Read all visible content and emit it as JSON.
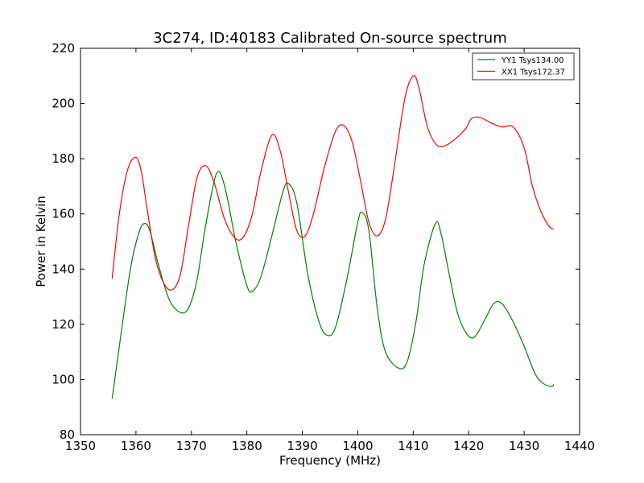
{
  "chart_data": {
    "type": "line",
    "title": "3C274, ID:40183 Calibrated On-source spectrum",
    "xlabel": "Frequency (MHz)",
    "ylabel": "Power in Kelvin",
    "xlim": [
      1350,
      1440
    ],
    "ylim": [
      80,
      220
    ],
    "xticks": [
      1350,
      1360,
      1370,
      1380,
      1390,
      1400,
      1410,
      1420,
      1430,
      1440
    ],
    "yticks": [
      80,
      100,
      120,
      140,
      160,
      180,
      200,
      220
    ],
    "grid": false,
    "legend_position": "top-right",
    "series": [
      {
        "name": "YY1 Tsys134.00",
        "color": "#008000",
        "x": [
          1355.7,
          1357,
          1359,
          1360.5,
          1361.5,
          1362.5,
          1364,
          1366,
          1368,
          1369.5,
          1371,
          1372.5,
          1374.5,
          1376,
          1378,
          1380,
          1381,
          1382.5,
          1384.5,
          1386.5,
          1387.5,
          1389,
          1391,
          1393,
          1394.5,
          1396,
          1398,
          1400,
          1400.8,
          1402,
          1403.5,
          1405,
          1407.5,
          1409,
          1410.5,
          1412,
          1414,
          1415,
          1416.5,
          1418,
          1419.5,
          1421,
          1423,
          1424.5,
          1426,
          1428,
          1430,
          1432,
          1433.5,
          1435,
          1435.3
        ],
        "values": [
          93,
          112,
          140,
          153,
          156.5,
          154,
          142,
          129,
          124.3,
          126,
          136,
          155,
          174.5,
          170,
          150,
          134,
          132,
          137,
          152,
          168,
          171,
          164,
          138,
          121,
          116,
          119,
          136,
          157,
          160.5,
          154,
          126,
          110,
          104,
          107,
          121,
          142,
          156.5,
          153,
          138,
          124,
          117,
          115.3,
          122,
          127.5,
          127.5,
          121,
          112,
          102,
          98.5,
          97.5,
          98.3
        ]
      },
      {
        "name": "XX1 Tsys172.37",
        "color": "#ff0000",
        "x": [
          1355.7,
          1357,
          1358.5,
          1360,
          1361,
          1362,
          1363.5,
          1365,
          1366.5,
          1368,
          1369.5,
          1371,
          1372.5,
          1374,
          1376,
          1378,
          1379.5,
          1381,
          1382.5,
          1384.5,
          1386,
          1387.5,
          1389,
          1390.5,
          1392,
          1394,
          1396,
          1397.5,
          1399,
          1400.5,
          1402,
          1403.5,
          1405,
          1406.5,
          1408.5,
          1410,
          1411,
          1412.5,
          1414,
          1415.5,
          1417.5,
          1419.5,
          1420.5,
          1422,
          1424,
          1426,
          1428,
          1430,
          1431.5,
          1433,
          1434.5,
          1435.3
        ],
        "values": [
          136.5,
          160,
          176,
          180.5,
          175,
          162,
          144,
          135,
          132.5,
          138,
          156,
          173,
          177.5,
          172,
          158,
          151,
          152,
          160,
          175,
          188.5,
          183,
          168,
          154,
          152,
          160,
          177,
          190,
          192,
          186,
          172,
          157,
          152,
          158,
          176,
          202,
          210,
          206,
          192,
          185.5,
          184.5,
          187,
          191,
          194.5,
          195,
          193,
          191.5,
          191.5,
          184,
          170,
          161,
          155.5,
          154.5
        ]
      }
    ]
  }
}
